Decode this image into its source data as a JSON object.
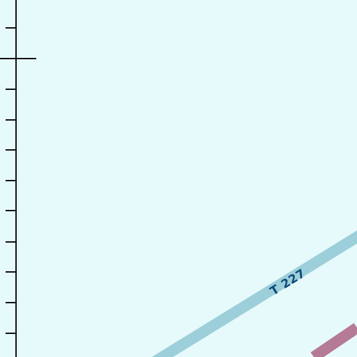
{
  "map": {
    "background_color": "#e6f9fb",
    "road_t227": {
      "label": "T 227",
      "stroke_color": "#9ccfd9",
      "label_color": "#0f4a7a"
    },
    "road_secondary": {
      "stroke_color": "#b57a95"
    },
    "scale_bar": {
      "color": "#111111"
    }
  }
}
